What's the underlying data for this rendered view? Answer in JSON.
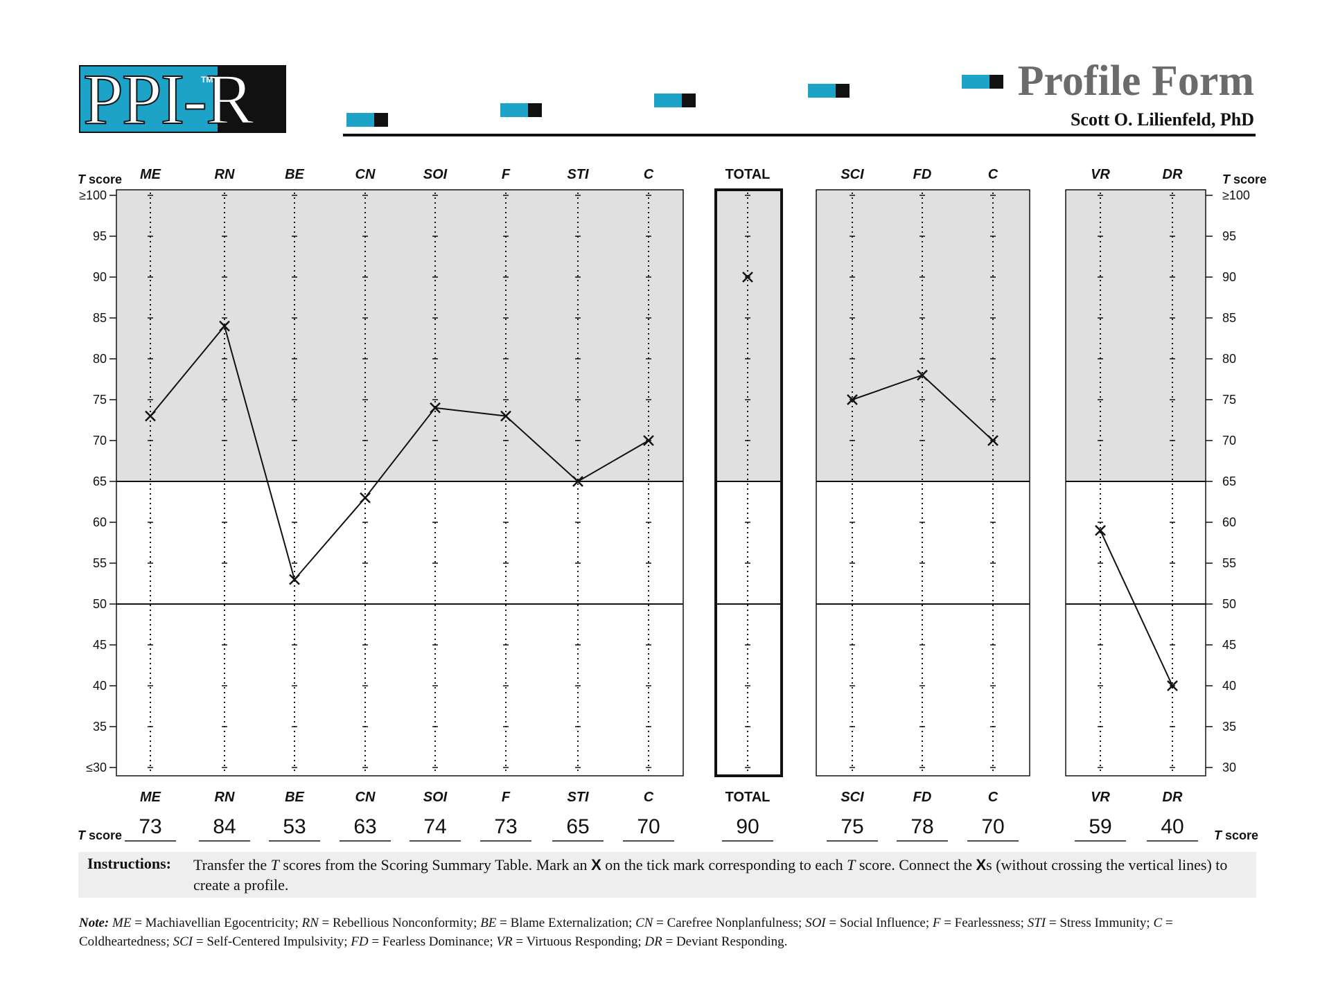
{
  "header": {
    "logo_text": "PPI-R",
    "logo_tm": "TM",
    "title": "Profile Form",
    "author": "Scott O. Lilienfeld, PhD"
  },
  "colors": {
    "accent": "#1da3c8",
    "shade": "#e0e0e0",
    "ink": "#111111"
  },
  "chart_data": {
    "type": "line",
    "title": "Profile Form",
    "ylabel": "T score",
    "ylim": [
      30,
      100
    ],
    "y_ticks": [
      100,
      95,
      90,
      85,
      80,
      75,
      70,
      65,
      60,
      55,
      50,
      45,
      40,
      35,
      30
    ],
    "y_tick_labels_left": [
      "≥100",
      "95",
      "90",
      "85",
      "80",
      "75",
      "70",
      "65",
      "60",
      "55",
      "50",
      "45",
      "40",
      "35",
      "≤30"
    ],
    "y_tick_labels_right": [
      "≥100",
      "95",
      "90",
      "85",
      "80",
      "75",
      "70",
      "65",
      "60",
      "55",
      "50",
      "45",
      "40",
      "35",
      "30"
    ],
    "shaded_above": 65,
    "reference_lines": [
      65,
      50
    ],
    "groups": [
      {
        "name": "content-scales",
        "categories": [
          "ME",
          "RN",
          "BE",
          "CN",
          "SOI",
          "F",
          "STI",
          "C"
        ],
        "values": [
          73,
          84,
          53,
          63,
          74,
          73,
          65,
          70
        ]
      },
      {
        "name": "total",
        "categories": [
          "TOTAL"
        ],
        "values": [
          90
        ]
      },
      {
        "name": "factor-scales",
        "categories": [
          "SCI",
          "FD",
          "C"
        ],
        "values": [
          75,
          78,
          70
        ]
      },
      {
        "name": "validity-scales",
        "categories": [
          "VR",
          "DR"
        ],
        "values": [
          59,
          40
        ]
      }
    ]
  },
  "tscore_label": {
    "prefix": "T",
    "suffix": "score"
  },
  "instructions": {
    "label": "Instructions:",
    "t1": "Transfer the ",
    "t2": "T",
    "t3": " scores from the Scoring Summary Table. Mark an ",
    "t4": "X",
    "t5": " on the tick mark corresponding to each ",
    "t6": "T",
    "t7": " score. Connect the ",
    "t8": "X",
    "t9": "s (without crossing the vertical lines) to create a profile."
  },
  "note": {
    "label": "Note:",
    "entries": [
      {
        "abbr": "ME",
        "def": "Machiavellian Egocentricity;"
      },
      {
        "abbr": "RN",
        "def": "Rebellious Nonconformity;"
      },
      {
        "abbr": "BE",
        "def": "Blame Externalization;"
      },
      {
        "abbr": "CN",
        "def": "Carefree Nonplanfulness;"
      },
      {
        "abbr": "SOI",
        "def": "Social Influence;"
      },
      {
        "abbr": "F",
        "def": "Fearlessness;"
      },
      {
        "abbr": "STI",
        "def": "Stress Immunity;"
      },
      {
        "abbr": "C",
        "def": "Coldheartedness;"
      },
      {
        "abbr": "SCI",
        "def": "Self-Centered Impulsivity;"
      },
      {
        "abbr": "FD",
        "def": "Fearless Dominance;"
      },
      {
        "abbr": "VR",
        "def": "Virtuous Responding;"
      },
      {
        "abbr": "DR",
        "def": "Deviant Responding."
      }
    ]
  }
}
